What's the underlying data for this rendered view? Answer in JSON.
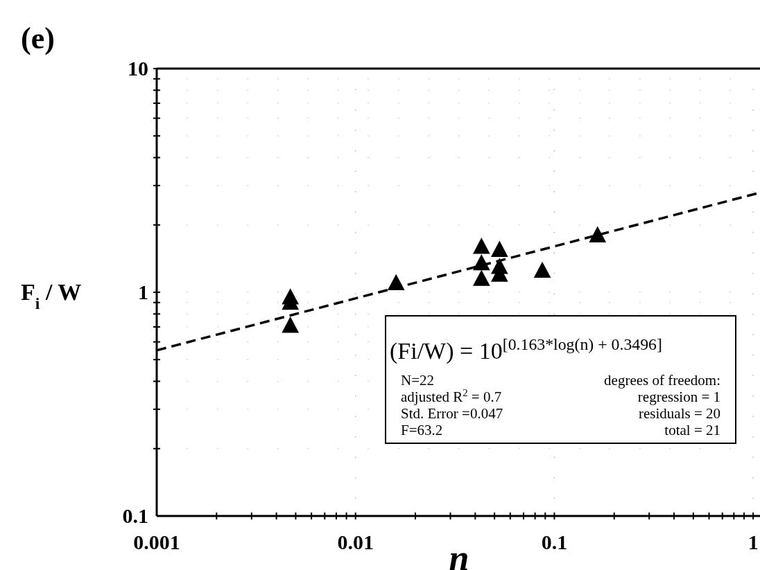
{
  "chart_data": {
    "type": "scatter",
    "title": "(e)",
    "xlabel": "n",
    "ylabel": "F$_{i}$ / W",
    "log": "xy",
    "grid": true,
    "marker": "triangle",
    "xlim": [
      0.001,
      1.1
    ],
    "ylim": [
      0.1,
      10
    ],
    "xticks": [
      0.001,
      {
        "value": 0.002,
        "label": null
      },
      {
        "value": 0.003,
        "label": null
      },
      {
        "value": 0.004,
        "label": null
      },
      {
        "value": 0.005,
        "label": null
      },
      {
        "value": 0.006,
        "label": null
      },
      {
        "value": 0.007,
        "label": null
      },
      {
        "value": 0.008,
        "label": null
      },
      {
        "value": 0.009,
        "label": null
      },
      0.01,
      {
        "value": 0.02,
        "label": null
      },
      {
        "value": 0.03,
        "label": null
      },
      {
        "value": 0.04,
        "label": null
      },
      {
        "value": 0.05,
        "label": null
      },
      {
        "value": 0.06,
        "label": null
      },
      {
        "value": 0.07,
        "label": null
      },
      {
        "value": 0.08,
        "label": null
      },
      {
        "value": 0.09,
        "label": null
      },
      0.1,
      {
        "value": 0.2,
        "label": null
      },
      {
        "value": 0.3,
        "label": null
      },
      {
        "value": 0.4,
        "label": null
      },
      {
        "value": 0.5,
        "label": null
      },
      {
        "value": 0.6,
        "label": null
      },
      {
        "value": 0.7,
        "label": null
      },
      {
        "value": 0.8,
        "label": null
      },
      {
        "value": 0.9,
        "label": null
      },
      1
    ],
    "yticks": [
      0.1,
      {
        "value": 0.2,
        "label": null
      },
      {
        "value": 0.3,
        "label": null
      },
      {
        "value": 0.4,
        "label": null
      },
      {
        "value": 0.5,
        "label": null
      },
      {
        "value": 0.6,
        "label": null
      },
      {
        "value": 0.7,
        "label": null
      },
      {
        "value": 0.8,
        "label": null
      },
      {
        "value": 0.9,
        "label": null
      },
      1,
      {
        "value": 2,
        "label": null
      },
      {
        "value": 3,
        "label": null
      },
      {
        "value": 4,
        "label": null
      },
      {
        "value": 5,
        "label": null
      },
      {
        "value": 6,
        "label": null
      },
      {
        "value": 7,
        "label": null
      },
      {
        "value": 8,
        "label": null
      },
      {
        "value": 9,
        "label": null
      },
      10
    ],
    "series": [
      {
        "color": "#000000",
        "x": [
          0.0047,
          0.0047,
          0.0047,
          0.016,
          0.043,
          0.043,
          0.043,
          0.053,
          0.053,
          0.053,
          0.087,
          0.165
        ],
        "values": [
          0.95,
          0.9,
          0.71,
          1.1,
          1.6,
          1.35,
          1.15,
          1.55,
          1.3,
          1.2,
          1.25,
          1.8
        ]
      },
      {
        "type": "line",
        "color": "#000000",
        "line_style": "dashed",
        "marker": "none",
        "x": [
          0.001,
          1.1
        ],
        "values": [
          0.55,
          2.8
        ]
      }
    ],
    "annotations": [
      "(Fi/W) = 10$^{[0.163*log(n) + 0.3496]}$",
      "N=22",
      "adjusted R$^{2}$ = 0.7",
      "Std. Error =0.047",
      "F=63.2",
      "degrees of freedom:",
      "regression =  1",
      "residuals = 20",
      "total = 21"
    ]
  }
}
